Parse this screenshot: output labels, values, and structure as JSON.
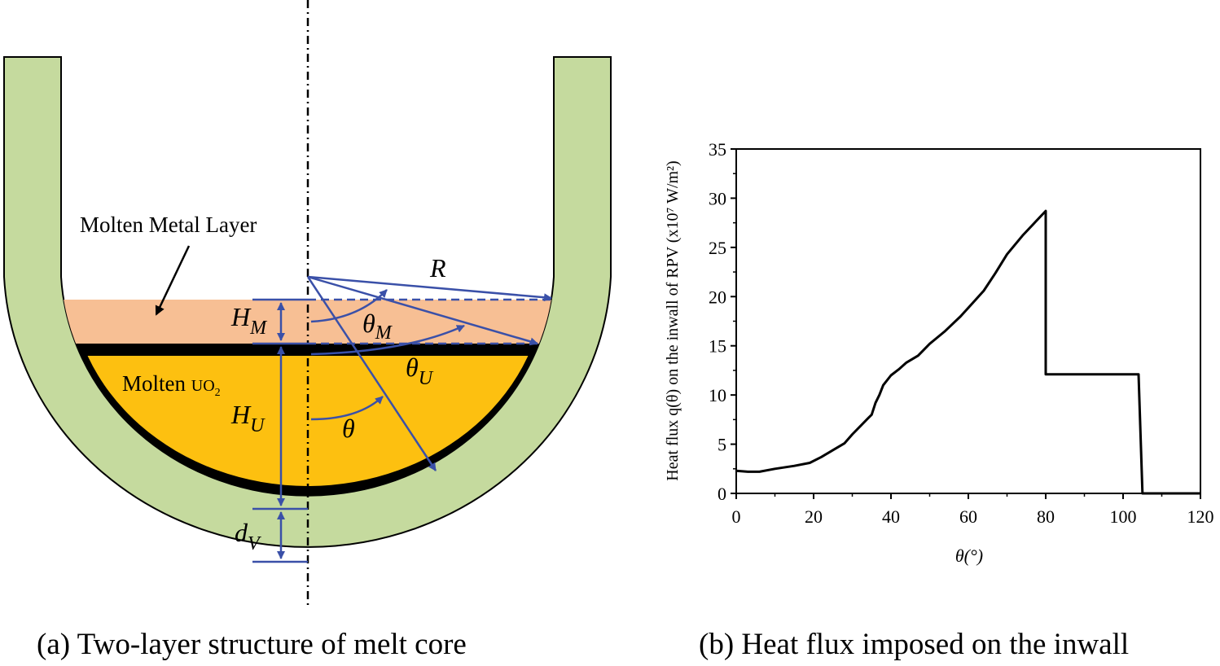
{
  "diagram": {
    "caption": "(a) Two-layer structure of melt core",
    "metal_layer_label": "Molten Metal Layer",
    "uo2_label": "Molten ",
    "uo2_formula": "UO",
    "uo2_subscript": "2",
    "symbols": {
      "R": "R",
      "H_M": "H",
      "H_M_sub": "M",
      "H_U": "H",
      "H_U_sub": "U",
      "theta_M": "θ",
      "theta_M_sub": "M",
      "theta_U": "θ",
      "theta_U_sub": "U",
      "theta": "θ",
      "d_V": "d",
      "d_V_sub": "V"
    },
    "colors": {
      "vessel_wall": "#c5da9e",
      "metal_layer": "#f7bf94",
      "uo2_pool": "#fdc010",
      "crust": "#000000",
      "annotation": "#3a50a8"
    }
  },
  "chart_data": {
    "type": "line",
    "caption": "(b) Heat flux imposed on the inwall",
    "xlabel": "θ(°)",
    "ylabel": "Heat flux q(θ) on the inwall of RPV (x10⁷ W/m²)",
    "xlim": [
      0,
      120
    ],
    "ylim": [
      0,
      35
    ],
    "xticks": [
      0,
      20,
      40,
      60,
      80,
      100,
      120
    ],
    "yticks": [
      0,
      5,
      10,
      15,
      20,
      25,
      30,
      35
    ],
    "grid": false,
    "series": [
      {
        "x": [
          0,
          3,
          6,
          10,
          15,
          19,
          22,
          25,
          28,
          30,
          32,
          34,
          35,
          36,
          37,
          38,
          40,
          42,
          44,
          47,
          50,
          54,
          58,
          61,
          64,
          67,
          70,
          74,
          80,
          80,
          104,
          105,
          120
        ],
        "y": [
          2.3,
          2.2,
          2.2,
          2.5,
          2.8,
          3.1,
          3.7,
          4.4,
          5.1,
          6.0,
          6.8,
          7.6,
          8.0,
          9.2,
          10.0,
          11.0,
          12.0,
          12.6,
          13.3,
          14.0,
          15.2,
          16.5,
          18.0,
          19.3,
          20.6,
          22.4,
          24.3,
          26.2,
          28.7,
          12.1,
          12.1,
          0,
          0
        ]
      }
    ]
  }
}
